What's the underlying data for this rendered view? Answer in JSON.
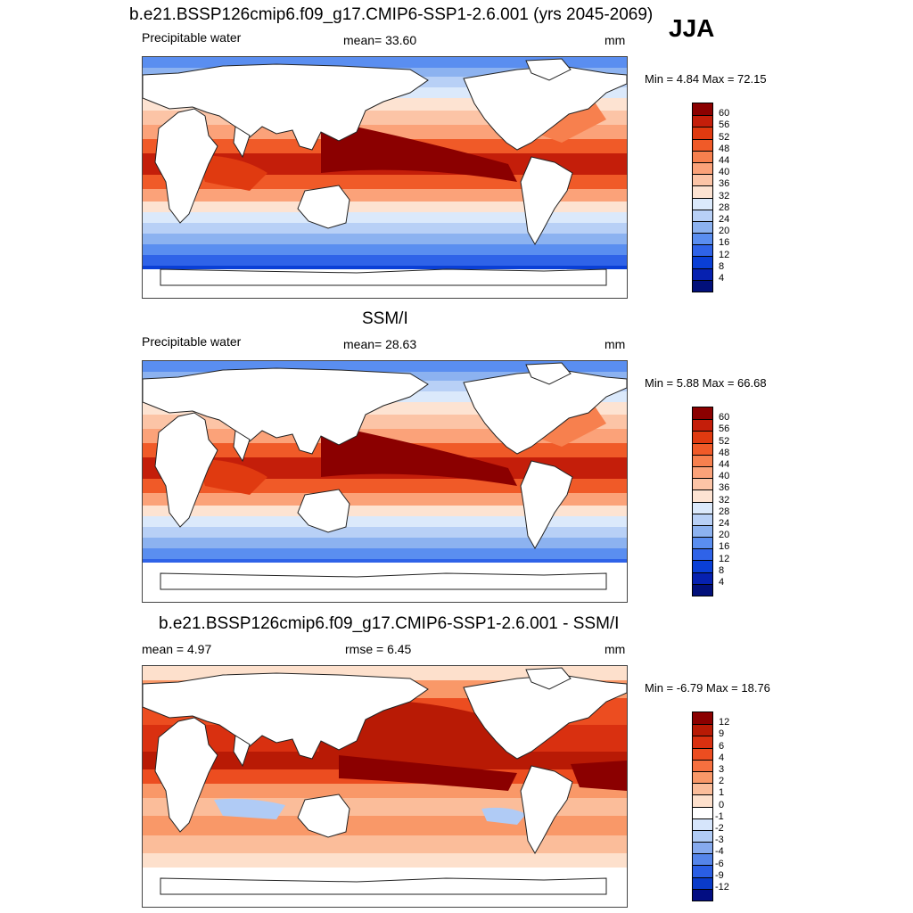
{
  "season": "JJA",
  "panels": [
    {
      "title": "b.e21.BSSP126cmip6.f09_g17.CMIP6-SSP1-2.6.001 (yrs 2045-2069)",
      "left_label": "Precipitable water",
      "center_label": "mean=  33.60",
      "units": "mm",
      "minmax": "Min =   4.84 Max =  72.15"
    },
    {
      "title": "SSM/I",
      "left_label": "Precipitable water",
      "center_label": "mean=  28.63",
      "units": "mm",
      "minmax": "Min =   5.88 Max =  66.68"
    },
    {
      "title": "b.e21.BSSP126cmip6.f09_g17.CMIP6-SSP1-2.6.001 - SSM/I",
      "left_label": "mean =   4.97",
      "center_label": "rmse =   6.45",
      "units": "mm",
      "minmax": "Min =  -6.79 Max =  18.76"
    }
  ],
  "chart_data": [
    {
      "type": "heatmap",
      "title": "b.e21.BSSP126cmip6.f09_g17.CMIP6-SSP1-2.6.001 (yrs 2045-2069)",
      "variable": "Precipitable water",
      "units": "mm",
      "mean": 33.6,
      "min": 4.84,
      "max": 72.15,
      "colorbar_levels": [
        "60",
        "56",
        "52",
        "48",
        "44",
        "40",
        "36",
        "32",
        "28",
        "24",
        "20",
        "16",
        "12",
        "8",
        "4"
      ],
      "colorbar_colors": [
        "#8b0000",
        "#c41e0a",
        "#e03a10",
        "#f05a28",
        "#f7804e",
        "#fba279",
        "#fcc4a6",
        "#fde3d2",
        "#dbe9fb",
        "#b8d0f6",
        "#8cb2f0",
        "#5a8ef0",
        "#2f63e8",
        "#0a3fd6",
        "#0621b0",
        "#02107a"
      ]
    },
    {
      "type": "heatmap",
      "title": "SSM/I",
      "variable": "Precipitable water",
      "units": "mm",
      "mean": 28.63,
      "min": 5.88,
      "max": 66.68,
      "colorbar_levels": [
        "60",
        "56",
        "52",
        "48",
        "44",
        "40",
        "36",
        "32",
        "28",
        "24",
        "20",
        "16",
        "12",
        "8",
        "4"
      ],
      "colorbar_colors": [
        "#8b0000",
        "#c41e0a",
        "#e03a10",
        "#f05a28",
        "#f7804e",
        "#fba279",
        "#fcc4a6",
        "#fde3d2",
        "#dbe9fb",
        "#b8d0f6",
        "#8cb2f0",
        "#5a8ef0",
        "#2f63e8",
        "#0a3fd6",
        "#0621b0",
        "#02107a"
      ]
    },
    {
      "type": "heatmap",
      "title": "b.e21.BSSP126cmip6.f09_g17.CMIP6-SSP1-2.6.001 - SSM/I",
      "units": "mm",
      "mean": 4.97,
      "rmse": 6.45,
      "min": -6.79,
      "max": 18.76,
      "colorbar_levels": [
        "12",
        "9",
        "6",
        "4",
        "3",
        "2",
        "1",
        "0",
        "-1",
        "-2",
        "-3",
        "-4",
        "-6",
        "-9",
        "-12"
      ],
      "colorbar_colors": [
        "#8b0000",
        "#b81a05",
        "#d93010",
        "#ec4d20",
        "#f6703f",
        "#f99868",
        "#fbbd9a",
        "#fde0cc",
        "#ffffff",
        "#d6e5fb",
        "#b0cbf5",
        "#86aaee",
        "#5585ea",
        "#2a5ee4",
        "#0a3bc9",
        "#020d82"
      ]
    }
  ]
}
